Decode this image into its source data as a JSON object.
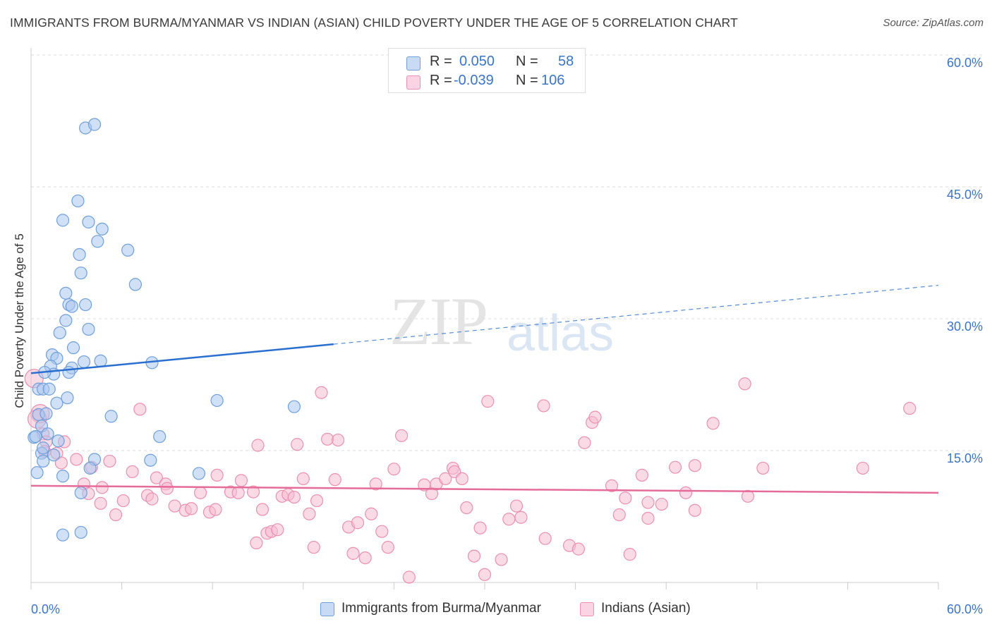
{
  "title": "IMMIGRANTS FROM BURMA/MYANMAR VS INDIAN (ASIAN) CHILD POVERTY UNDER THE AGE OF 5 CORRELATION CHART",
  "source": "Source: ZipAtlas.com",
  "watermark": {
    "zip": "ZIP",
    "atlas": "atlas"
  },
  "legend_top": {
    "r_label": "R =",
    "n_label": "N =",
    "rows": [
      {
        "r": "0.050",
        "n": "58"
      },
      {
        "r": "-0.039",
        "n": "106"
      }
    ]
  },
  "colors": {
    "blue_fill": "#a9c6ef",
    "blue_stroke": "#6f9fdc",
    "blue_line": "#2a6fd0",
    "pink_fill": "#f6bcd0",
    "pink_stroke": "#ec8fb1",
    "pink_line": "#e56b99",
    "grid": "#dedede",
    "tick_text": "#3a74c9"
  },
  "chart_data": {
    "type": "scatter",
    "title": "IMMIGRANTS FROM BURMA/MYANMAR VS INDIAN (ASIAN) CHILD POVERTY UNDER THE AGE OF 5 CORRELATION CHART",
    "xlabel": "",
    "ylabel": "Child Poverty Under the Age of 5",
    "xlim": [
      0,
      60
    ],
    "ylim": [
      0,
      60
    ],
    "x_tick_labels": [
      "0.0%",
      "60.0%"
    ],
    "y_ticks": [
      15,
      30,
      45,
      60
    ],
    "y_tick_labels": [
      "15.0%",
      "30.0%",
      "45.0%",
      "60.0%"
    ],
    "grid": true,
    "legend_position": "top-center",
    "series": [
      {
        "name": "Immigrants from Burma/Myanmar",
        "color": "blue",
        "trend": {
          "x0": 0,
          "y0": 23.8,
          "x1": 20,
          "y1": 27.1,
          "dash_to_x": 60,
          "dash_to_y": 33.8
        },
        "points": [
          [
            3.6,
            51.7
          ],
          [
            4.2,
            52.1
          ],
          [
            3.1,
            43.4
          ],
          [
            2.1,
            41.2
          ],
          [
            3.8,
            41.0
          ],
          [
            4.7,
            40.2
          ],
          [
            4.4,
            38.8
          ],
          [
            6.4,
            37.8
          ],
          [
            3.2,
            37.3
          ],
          [
            3.3,
            35.2
          ],
          [
            6.9,
            33.9
          ],
          [
            2.3,
            32.9
          ],
          [
            2.5,
            31.6
          ],
          [
            2.7,
            31.4
          ],
          [
            3.6,
            31.6
          ],
          [
            2.3,
            29.8
          ],
          [
            3.8,
            28.8
          ],
          [
            1.9,
            28.4
          ],
          [
            2.8,
            26.7
          ],
          [
            1.4,
            25.9
          ],
          [
            1.7,
            25.5
          ],
          [
            3.5,
            25.1
          ],
          [
            4.6,
            25.2
          ],
          [
            8.0,
            25.0
          ],
          [
            1.3,
            24.6
          ],
          [
            2.7,
            24.4
          ],
          [
            2.5,
            23.9
          ],
          [
            1.5,
            23.7
          ],
          [
            0.9,
            23.9
          ],
          [
            0.5,
            22.0
          ],
          [
            0.8,
            22.0
          ],
          [
            1.2,
            22.0
          ],
          [
            2.4,
            21.0
          ],
          [
            12.3,
            20.7
          ],
          [
            1.7,
            20.4
          ],
          [
            17.4,
            20.0
          ],
          [
            0.5,
            19.1
          ],
          [
            5.3,
            18.9
          ],
          [
            1.0,
            19.2
          ],
          [
            0.7,
            17.8
          ],
          [
            1.1,
            16.9
          ],
          [
            0.2,
            16.5
          ],
          [
            0.3,
            16.6
          ],
          [
            8.5,
            16.6
          ],
          [
            1.8,
            16.1
          ],
          [
            0.7,
            14.7
          ],
          [
            1.5,
            14.5
          ],
          [
            4.2,
            14.0
          ],
          [
            7.9,
            13.9
          ],
          [
            0.8,
            13.8
          ],
          [
            3.9,
            13.0
          ],
          [
            0.4,
            12.5
          ],
          [
            11.1,
            12.4
          ],
          [
            2.1,
            12.1
          ],
          [
            3.3,
            10.2
          ],
          [
            2.1,
            5.4
          ],
          [
            3.3,
            5.7
          ],
          [
            0.8,
            15.3
          ]
        ]
      },
      {
        "name": "Indians (Asian)",
        "color": "pink",
        "trend": {
          "x0": 0,
          "y0": 11.0,
          "x1": 60,
          "y1": 10.2
        },
        "points": [
          [
            0.2,
            23.2
          ],
          [
            0.6,
            19.2
          ],
          [
            0.8,
            16.9
          ],
          [
            1.0,
            16.0
          ],
          [
            2.2,
            16.0
          ],
          [
            0.9,
            14.9
          ],
          [
            1.7,
            14.7
          ],
          [
            3.0,
            14.0
          ],
          [
            2.0,
            13.6
          ],
          [
            4.0,
            13.1
          ],
          [
            5.2,
            13.8
          ],
          [
            6.7,
            12.6
          ],
          [
            7.2,
            19.7
          ],
          [
            8.3,
            11.9
          ],
          [
            8.9,
            11.2
          ],
          [
            9.0,
            10.7
          ],
          [
            7.7,
            9.9
          ],
          [
            8.0,
            9.5
          ],
          [
            6.1,
            9.3
          ],
          [
            4.7,
            10.8
          ],
          [
            3.5,
            11.2
          ],
          [
            3.8,
            10.1
          ],
          [
            4.6,
            9.0
          ],
          [
            5.6,
            7.7
          ],
          [
            9.5,
            8.7
          ],
          [
            10.2,
            8.2
          ],
          [
            10.6,
            8.4
          ],
          [
            11.2,
            10.2
          ],
          [
            11.8,
            8.0
          ],
          [
            12.2,
            8.3
          ],
          [
            12.3,
            12.2
          ],
          [
            13.2,
            10.3
          ],
          [
            13.7,
            10.2
          ],
          [
            13.9,
            11.6
          ],
          [
            14.7,
            10.3
          ],
          [
            15.3,
            8.3
          ],
          [
            15.0,
            15.6
          ],
          [
            14.9,
            4.5
          ],
          [
            15.6,
            5.6
          ],
          [
            15.9,
            5.8
          ],
          [
            16.3,
            6.0
          ],
          [
            16.6,
            9.8
          ],
          [
            17.0,
            10.0
          ],
          [
            17.4,
            9.7
          ],
          [
            17.6,
            15.7
          ],
          [
            18.0,
            11.8
          ],
          [
            18.4,
            7.8
          ],
          [
            18.7,
            4.0
          ],
          [
            18.9,
            9.3
          ],
          [
            19.2,
            21.6
          ],
          [
            19.6,
            16.3
          ],
          [
            20.1,
            11.7
          ],
          [
            20.3,
            16.2
          ],
          [
            21.0,
            6.3
          ],
          [
            21.3,
            3.3
          ],
          [
            21.6,
            6.8
          ],
          [
            22.1,
            2.8
          ],
          [
            22.5,
            7.8
          ],
          [
            22.8,
            11.2
          ],
          [
            23.2,
            5.8
          ],
          [
            23.6,
            4.0
          ],
          [
            24.0,
            12.9
          ],
          [
            24.5,
            16.7
          ],
          [
            25.0,
            0.6
          ],
          [
            26.0,
            11.1
          ],
          [
            26.5,
            10.1
          ],
          [
            26.8,
            11.2
          ],
          [
            27.4,
            11.8
          ],
          [
            27.9,
            13.0
          ],
          [
            28.0,
            12.6
          ],
          [
            28.5,
            11.8
          ],
          [
            28.8,
            8.5
          ],
          [
            29.3,
            3.0
          ],
          [
            29.7,
            6.2
          ],
          [
            30.0,
            0.9
          ],
          [
            30.2,
            20.6
          ],
          [
            31.1,
            2.6
          ],
          [
            31.6,
            7.2
          ],
          [
            32.1,
            8.7
          ],
          [
            32.4,
            7.4
          ],
          [
            33.9,
            20.1
          ],
          [
            34.0,
            5.0
          ],
          [
            35.6,
            4.2
          ],
          [
            36.2,
            3.8
          ],
          [
            36.6,
            15.9
          ],
          [
            37.1,
            18.2
          ],
          [
            37.3,
            18.8
          ],
          [
            38.4,
            11.0
          ],
          [
            38.9,
            7.7
          ],
          [
            39.3,
            9.6
          ],
          [
            39.6,
            3.2
          ],
          [
            40.4,
            12.2
          ],
          [
            40.8,
            9.1
          ],
          [
            40.8,
            7.3
          ],
          [
            41.7,
            8.9
          ],
          [
            42.6,
            13.1
          ],
          [
            43.3,
            10.2
          ],
          [
            43.9,
            8.2
          ],
          [
            43.9,
            13.3
          ],
          [
            45.1,
            18.1
          ],
          [
            47.2,
            22.6
          ],
          [
            47.4,
            9.8
          ],
          [
            48.4,
            13.0
          ],
          [
            55.0,
            13.0
          ],
          [
            58.1,
            19.8
          ],
          [
            0.4,
            18.6
          ]
        ]
      }
    ]
  },
  "bottom_legend": [
    {
      "label": "Immigrants from Burma/Myanmar"
    },
    {
      "label": "Indians (Asian)"
    }
  ]
}
